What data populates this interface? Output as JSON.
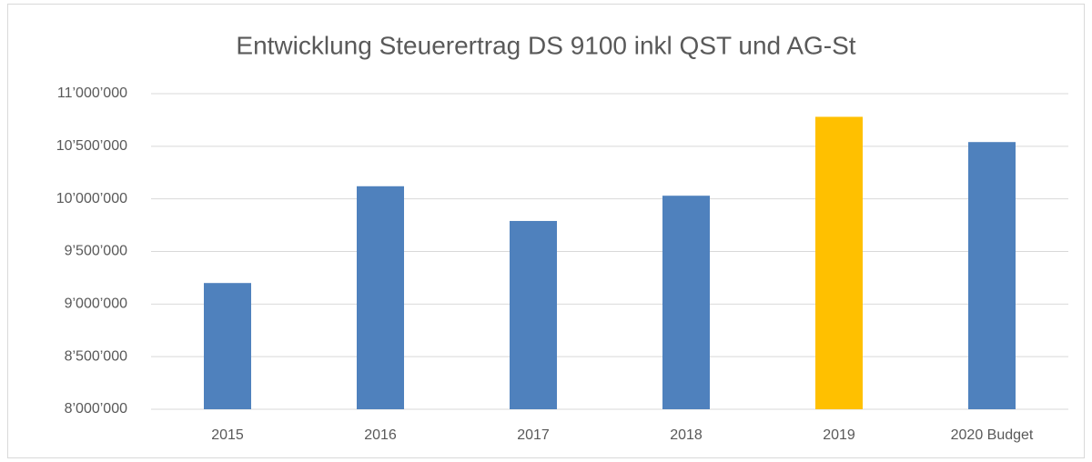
{
  "chart_data": {
    "type": "bar",
    "title": "Entwicklung Steuerertrag DS 9100 inkl QST und AG-St",
    "categories": [
      "2015",
      "2016",
      "2017",
      "2018",
      "2019",
      "2020 Budget"
    ],
    "values": [
      9200000,
      10120000,
      9790000,
      10030000,
      10780000,
      10540000
    ],
    "colors": [
      "#4f81bd",
      "#4f81bd",
      "#4f81bd",
      "#4f81bd",
      "#ffc000",
      "#4f81bd"
    ],
    "ylim": [
      8000000,
      11000000
    ],
    "yticks": [
      {
        "value": 8000000,
        "label": "8’000’000"
      },
      {
        "value": 8500000,
        "label": "8’500’000"
      },
      {
        "value": 9000000,
        "label": "9’000’000"
      },
      {
        "value": 9500000,
        "label": "9’500’000"
      },
      {
        "value": 10000000,
        "label": "10’000’000"
      },
      {
        "value": 10500000,
        "label": "10’500’000"
      },
      {
        "value": 11000000,
        "label": "11’000’000"
      }
    ],
    "grid": true
  }
}
